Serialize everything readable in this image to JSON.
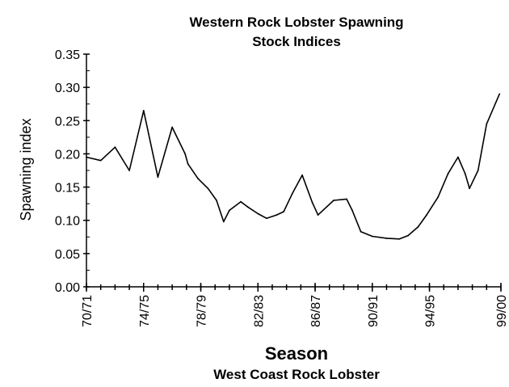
{
  "chart_data": {
    "type": "line",
    "title_lines": [
      "Western Rock Lobster Spawning",
      "Stock Indices"
    ],
    "xlabel": "Season",
    "subtitle": "West Coast Rock Lobster",
    "ylabel": "Spawning index",
    "ylim": [
      0,
      0.35
    ],
    "yticks": [
      "0.00",
      "0.05",
      "0.10",
      "0.15",
      "0.20",
      "0.25",
      "0.30",
      "0.35"
    ],
    "xlim": [
      1970,
      1999
    ],
    "xticks": [
      {
        "x": 1970,
        "label": "70/71"
      },
      {
        "x": 1974,
        "label": "74/75"
      },
      {
        "x": 1978,
        "label": "78/79"
      },
      {
        "x": 1982,
        "label": "82/83"
      },
      {
        "x": 1986,
        "label": "86/87"
      },
      {
        "x": 1990,
        "label": "90/91"
      },
      {
        "x": 1994,
        "label": "94/95"
      },
      {
        "x": 1999,
        "label": "99/00"
      }
    ],
    "grid": false,
    "series": [
      {
        "x": [
          1970,
          1971,
          1972,
          1973,
          1974,
          1975,
          1976,
          1976.9,
          1977.1,
          1977.8,
          1978.5,
          1979.1,
          1979.6,
          1980,
          1980.8,
          1981.3,
          1982,
          1982.6,
          1983.3,
          1983.8,
          1984.4,
          1985.1,
          1985.8,
          1986.2,
          1987.3,
          1988.2,
          1988.6,
          1989.2,
          1990,
          1991,
          1991.9,
          1992.5,
          1993.2,
          1993.8,
          1994.6,
          1995.3,
          1996,
          1996.5,
          1996.8,
          1997.4,
          1998,
          1998.9
        ],
        "y": [
          0.195,
          0.19,
          0.21,
          0.175,
          0.265,
          0.165,
          0.24,
          0.2,
          0.185,
          0.163,
          0.148,
          0.13,
          0.098,
          0.115,
          0.128,
          0.12,
          0.11,
          0.103,
          0.108,
          0.113,
          0.14,
          0.168,
          0.127,
          0.108,
          0.13,
          0.132,
          0.115,
          0.083,
          0.076,
          0.073,
          0.072,
          0.077,
          0.09,
          0.108,
          0.135,
          0.17,
          0.195,
          0.17,
          0.148,
          0.175,
          0.245,
          0.29
        ]
      }
    ]
  }
}
